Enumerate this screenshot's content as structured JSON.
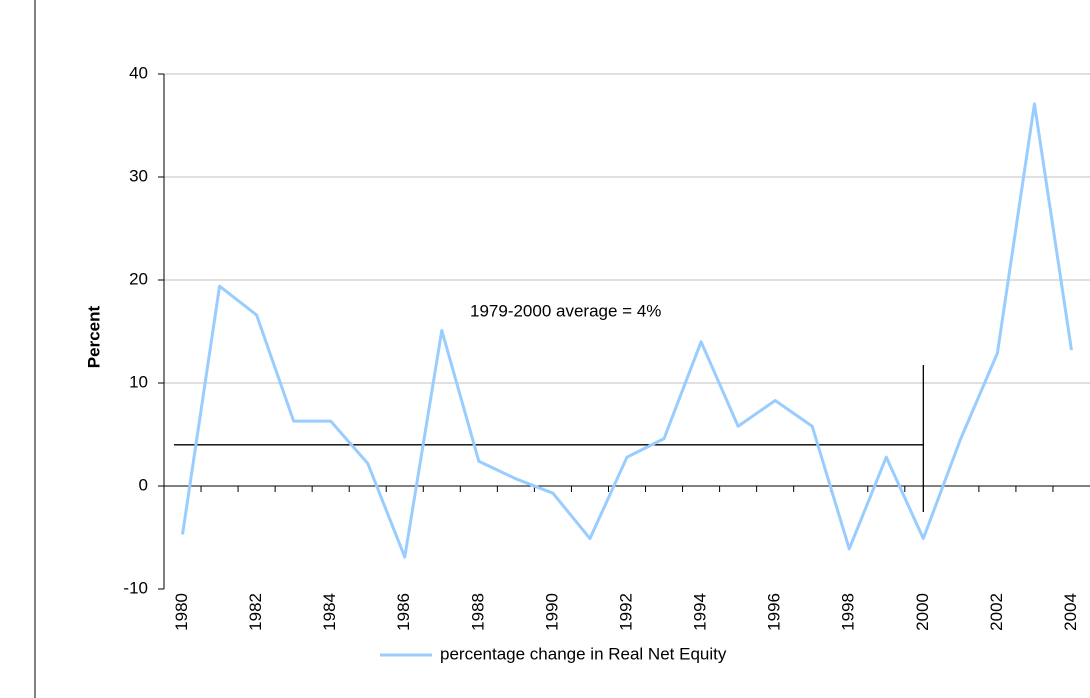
{
  "chart_data": {
    "type": "line",
    "y_label": "Percent",
    "categories": [
      "1980",
      null,
      "1982",
      null,
      "1984",
      null,
      "1986",
      null,
      "1988",
      null,
      "1990",
      null,
      "1992",
      null,
      "1994",
      null,
      "1996",
      null,
      "1998",
      null,
      "2000",
      null,
      "2002",
      null,
      "2004"
    ],
    "series": [
      {
        "name": "percentage change in Real Net Equity",
        "color": "#99ccff",
        "values": [
          -4.7,
          19.4,
          16.6,
          6.3,
          6.3,
          2.2,
          -6.9,
          15.1,
          2.4,
          0.7,
          -0.7,
          -5.1,
          2.8,
          4.6,
          14.0,
          5.8,
          8.3,
          5.8,
          -6.1,
          2.8,
          -5.1,
          4.5,
          12.9,
          37.1,
          13.2
        ]
      }
    ],
    "reference_line": {
      "value": 4,
      "label": "1979-2000 average = 4%",
      "color": "#000000"
    },
    "ylim": [
      -10,
      40
    ],
    "yticks": [
      -10,
      0,
      10,
      20,
      30,
      40
    ],
    "grid": true,
    "legend": "bottom"
  }
}
